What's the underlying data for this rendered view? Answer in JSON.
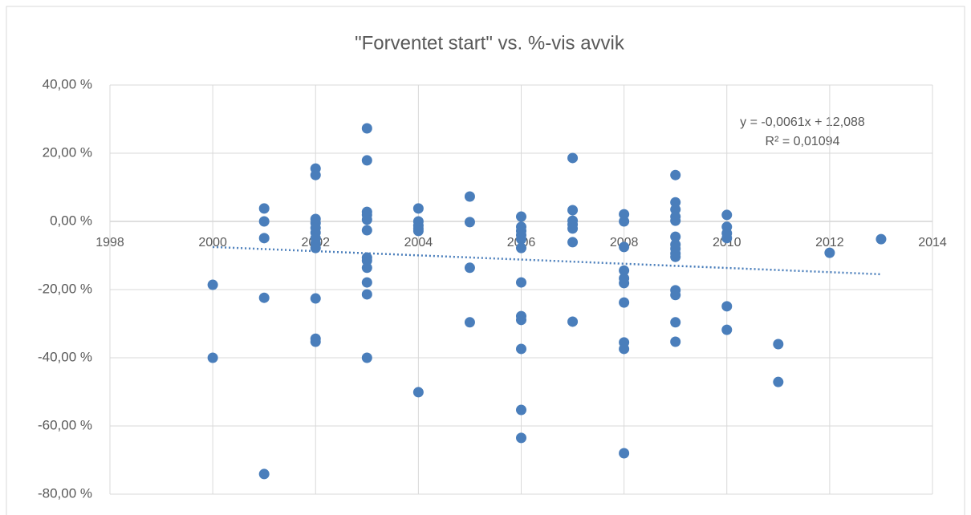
{
  "chart_data": {
    "type": "scatter",
    "title": "\"Forventet start\" vs. %-vis avvik",
    "annotations": [
      "y = -0,0061x + 12,088",
      "R² = 0,01094"
    ],
    "color": "#4a7ebb",
    "trendline": {
      "x": [
        2000,
        2013
      ],
      "values": [
        -7.5,
        -15.5
      ],
      "color": "#4a7ebb"
    },
    "xlim": [
      1998,
      2014
    ],
    "xticks": [
      1998,
      2000,
      2002,
      2004,
      2006,
      2008,
      2010,
      2012,
      2014
    ],
    "ylim": [
      -80,
      40
    ],
    "yticks": [
      {
        "value": 40,
        "label": "40,00 %"
      },
      {
        "value": 20,
        "label": "20,00 %"
      },
      {
        "value": 0,
        "label": "0,00 %"
      },
      {
        "value": -20,
        "label": "-20,00 %"
      },
      {
        "value": -40,
        "label": "-40,00 %"
      },
      {
        "value": -60,
        "label": "-60,00 %"
      },
      {
        "value": -80,
        "label": "-80,00 %"
      }
    ],
    "grid": true,
    "x": [
      2000,
      2000,
      2001,
      2001,
      2001,
      2001,
      2001,
      2002,
      2002,
      2002,
      2002,
      2002,
      2002,
      2002,
      2002,
      2002,
      2002,
      2002,
      2002,
      2003,
      2003,
      2003,
      2003,
      2003,
      2003,
      2003,
      2003,
      2003,
      2003,
      2003,
      2003,
      2004,
      2004,
      2004,
      2004,
      2004,
      2004,
      2005,
      2005,
      2005,
      2005,
      2006,
      2006,
      2006,
      2006,
      2006,
      2006,
      2006,
      2006,
      2006,
      2006,
      2006,
      2006,
      2007,
      2007,
      2007,
      2007,
      2007,
      2007,
      2007,
      2008,
      2008,
      2008,
      2008,
      2008,
      2008,
      2008,
      2008,
      2008,
      2008,
      2009,
      2009,
      2009,
      2009,
      2009,
      2009,
      2009,
      2009,
      2009,
      2009,
      2009,
      2009,
      2009,
      2009,
      2010,
      2010,
      2010,
      2010,
      2010,
      2010,
      2011,
      2011,
      2012,
      2013
    ],
    "values": [
      -18.6,
      -40,
      3.8,
      0,
      -4.9,
      -22.4,
      -74.1,
      15.5,
      13.6,
      0.7,
      -0.5,
      -1.9,
      -3.3,
      -4.9,
      -6.4,
      -7.8,
      -22.6,
      -34.4,
      -35.3,
      27.3,
      17.9,
      2.8,
      1.9,
      0.5,
      -2.6,
      -10.6,
      -11.5,
      -13.6,
      -17.9,
      -21.4,
      -40,
      3.8,
      0,
      -1.2,
      -2.1,
      -2.8,
      -50.1,
      7.3,
      -0.2,
      -13.6,
      -29.6,
      1.4,
      -1.6,
      -2.8,
      -4,
      -5.2,
      -7.8,
      -17.9,
      -27.8,
      -28.9,
      -37.4,
      -55.3,
      -63.5,
      18.6,
      3.3,
      0.2,
      -0.9,
      -2.1,
      -6.1,
      -29.4,
      2.1,
      0,
      -7.5,
      -14.4,
      -16.7,
      -18.1,
      -23.8,
      -35.5,
      -37.4,
      -68,
      13.6,
      5.6,
      3.5,
      1.4,
      0.2,
      -4.5,
      -6.8,
      -8,
      -9.4,
      -10.4,
      -20.2,
      -21.6,
      -29.6,
      -35.3,
      1.9,
      -1.6,
      -3.5,
      -4.9,
      -24.9,
      -31.8,
      -36,
      -47.1,
      -9.2,
      -5.2
    ]
  }
}
